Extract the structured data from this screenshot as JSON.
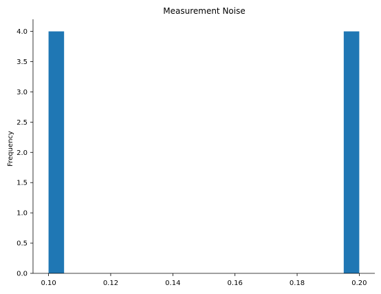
{
  "chart_data": {
    "type": "bar",
    "title": "Measurement Noise",
    "xlabel": "",
    "ylabel": "Frequency",
    "xlim": [
      0.095,
      0.205
    ],
    "ylim": [
      0.0,
      4.2
    ],
    "x_ticks": [
      0.1,
      0.12,
      0.14,
      0.16,
      0.18,
      0.2
    ],
    "x_tick_labels": [
      "0.10",
      "0.12",
      "0.14",
      "0.16",
      "0.18",
      "0.20"
    ],
    "y_ticks": [
      0.0,
      0.5,
      1.0,
      1.5,
      2.0,
      2.5,
      3.0,
      3.5,
      4.0
    ],
    "y_tick_labels": [
      "0.0",
      "0.5",
      "1.0",
      "1.5",
      "2.0",
      "2.5",
      "3.0",
      "3.5",
      "4.0"
    ],
    "bins": [
      {
        "x0": 0.1,
        "x1": 0.105,
        "count": 4
      },
      {
        "x0": 0.195,
        "x1": 0.2,
        "count": 4
      }
    ],
    "bar_color": "#1f77b4",
    "grid": false,
    "legend": null
  }
}
